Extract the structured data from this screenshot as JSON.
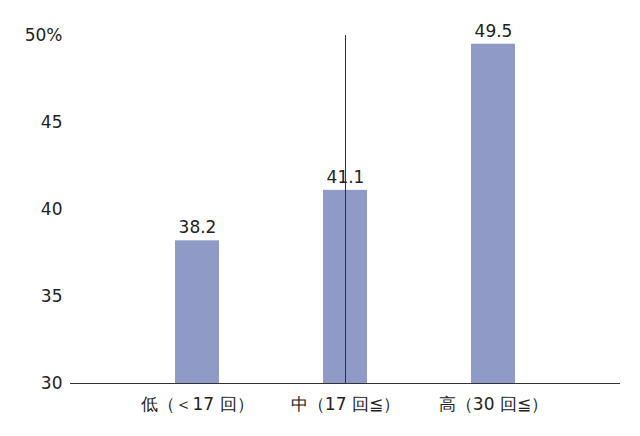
{
  "chart_data": {
    "type": "bar",
    "categories": [
      "低（＜17 回）",
      "中（17 回≦）",
      "高（30 回≦）"
    ],
    "values": [
      38.2,
      41.1,
      49.5
    ],
    "color": "#8f9bc6",
    "ylim": [
      30,
      50
    ],
    "yticks": [
      30,
      35,
      40,
      45,
      {
        "value": 50,
        "label": "50%"
      }
    ],
    "grid": false,
    "data_labels": true
  }
}
